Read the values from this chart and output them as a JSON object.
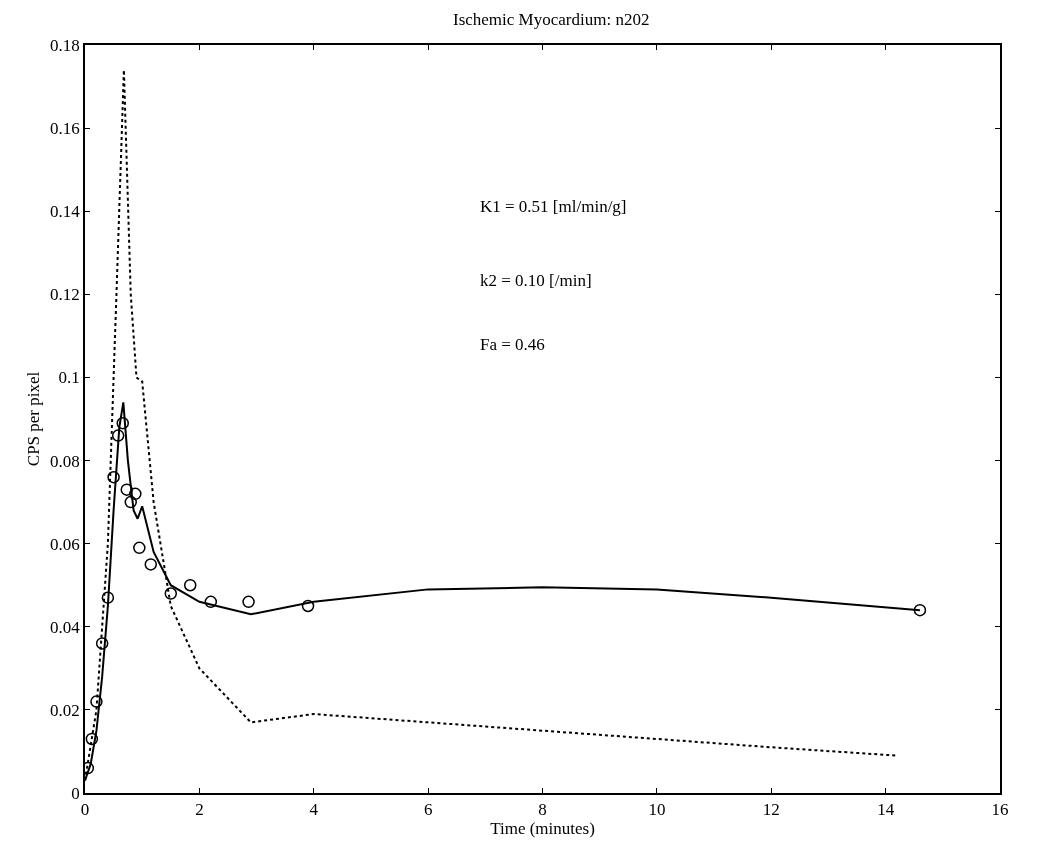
{
  "chart_data": {
    "type": "line",
    "title": "Ischemic Myocardium: n202",
    "xlabel": "Time (minutes)",
    "ylabel": "CPS per pixel",
    "xlim": [
      0,
      16
    ],
    "xticks": [
      0,
      2,
      4,
      6,
      8,
      10,
      12,
      14,
      16
    ],
    "ylim": [
      0,
      0.18
    ],
    "yticks": [
      0,
      0.02,
      0.04,
      0.06,
      0.08,
      0.1,
      0.12,
      0.14,
      0.16,
      0.18
    ],
    "series": [
      {
        "type": "scatter",
        "marker": "circle",
        "color": "#000000",
        "x": [
          0.05,
          0.12,
          0.2,
          0.3,
          0.4,
          0.5,
          0.58,
          0.66,
          0.73,
          0.8,
          0.88,
          0.95,
          1.15,
          1.5,
          1.84,
          2.2,
          2.86,
          3.9,
          14.6
        ],
        "values": [
          0.006,
          0.013,
          0.022,
          0.036,
          0.047,
          0.076,
          0.086,
          0.089,
          0.073,
          0.07,
          0.072,
          0.059,
          0.055,
          0.048,
          0.05,
          0.046,
          0.046,
          0.045,
          0.044
        ]
      },
      {
        "line_style": "solid",
        "color": "#000000",
        "x": [
          0,
          0.1,
          0.2,
          0.3,
          0.4,
          0.5,
          0.6,
          0.67,
          0.75,
          0.85,
          0.92,
          1.0,
          1.2,
          1.5,
          2.0,
          2.9,
          4,
          6,
          8,
          10,
          12,
          14.6
        ],
        "values": [
          0.003,
          0.007,
          0.015,
          0.028,
          0.045,
          0.068,
          0.088,
          0.094,
          0.08,
          0.068,
          0.066,
          0.069,
          0.058,
          0.05,
          0.046,
          0.043,
          0.046,
          0.049,
          0.0495,
          0.049,
          0.047,
          0.044
        ]
      },
      {
        "line_style": "dotted",
        "color": "#000000",
        "x": [
          0,
          0.2,
          0.4,
          0.55,
          0.68,
          0.8,
          0.9,
          1.0,
          1.2,
          1.5,
          2.0,
          2.9,
          4,
          6,
          8,
          10,
          12,
          14.2
        ],
        "values": [
          0.003,
          0.02,
          0.06,
          0.12,
          0.174,
          0.12,
          0.1,
          0.099,
          0.07,
          0.045,
          0.03,
          0.017,
          0.019,
          0.017,
          0.015,
          0.013,
          0.011,
          0.009
        ]
      }
    ],
    "annotations": [
      "K1 = 0.51 [ml/min/g]",
      "k2 = 0.10 [/min]",
      "Fa = 0.46"
    ]
  }
}
